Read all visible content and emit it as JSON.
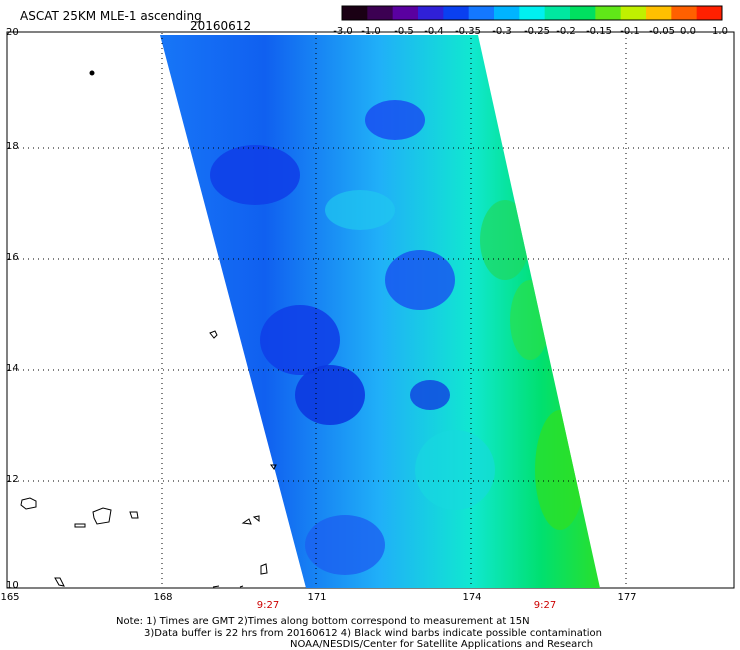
{
  "title": "ASCAT 25KM MLE-1 ascending",
  "date": "20160612",
  "map": {
    "lat_labels": [
      "20",
      "18",
      "16",
      "14",
      "12",
      "10"
    ],
    "lon_labels": [
      "165",
      "168",
      "171",
      "174",
      "177"
    ],
    "pass_times": [
      "9:27",
      "9:27"
    ],
    "swath_colormap": "blue-cyan-green"
  },
  "colorbar": {
    "labels": [
      "-3.0",
      "-1.0",
      "-0.5",
      "-0.4",
      "-0.35",
      "-0.3",
      "-0.25",
      "-0.2",
      "-0.15",
      "-0.1",
      "-0.05",
      "0.0",
      "1.0"
    ],
    "colors": [
      "#1a0014",
      "#3c0052",
      "#5a00a0",
      "#3020d8",
      "#0a40f0",
      "#1478ff",
      "#00b4ff",
      "#00f0f0",
      "#00e8a0",
      "#00e060",
      "#60e818",
      "#c0f000",
      "#ffc000",
      "#ff6000",
      "#ff2000"
    ]
  },
  "notes": {
    "line1": "Note: 1) Times are GMT 2)Times along bottom correspond to measurement at 15N",
    "line2": "3)Data buffer is 22 hrs from 20160612 4) Black wind barbs indicate possible contamination",
    "line3": "NOAA/NESDIS/Center for Satellite Applications and Research"
  }
}
